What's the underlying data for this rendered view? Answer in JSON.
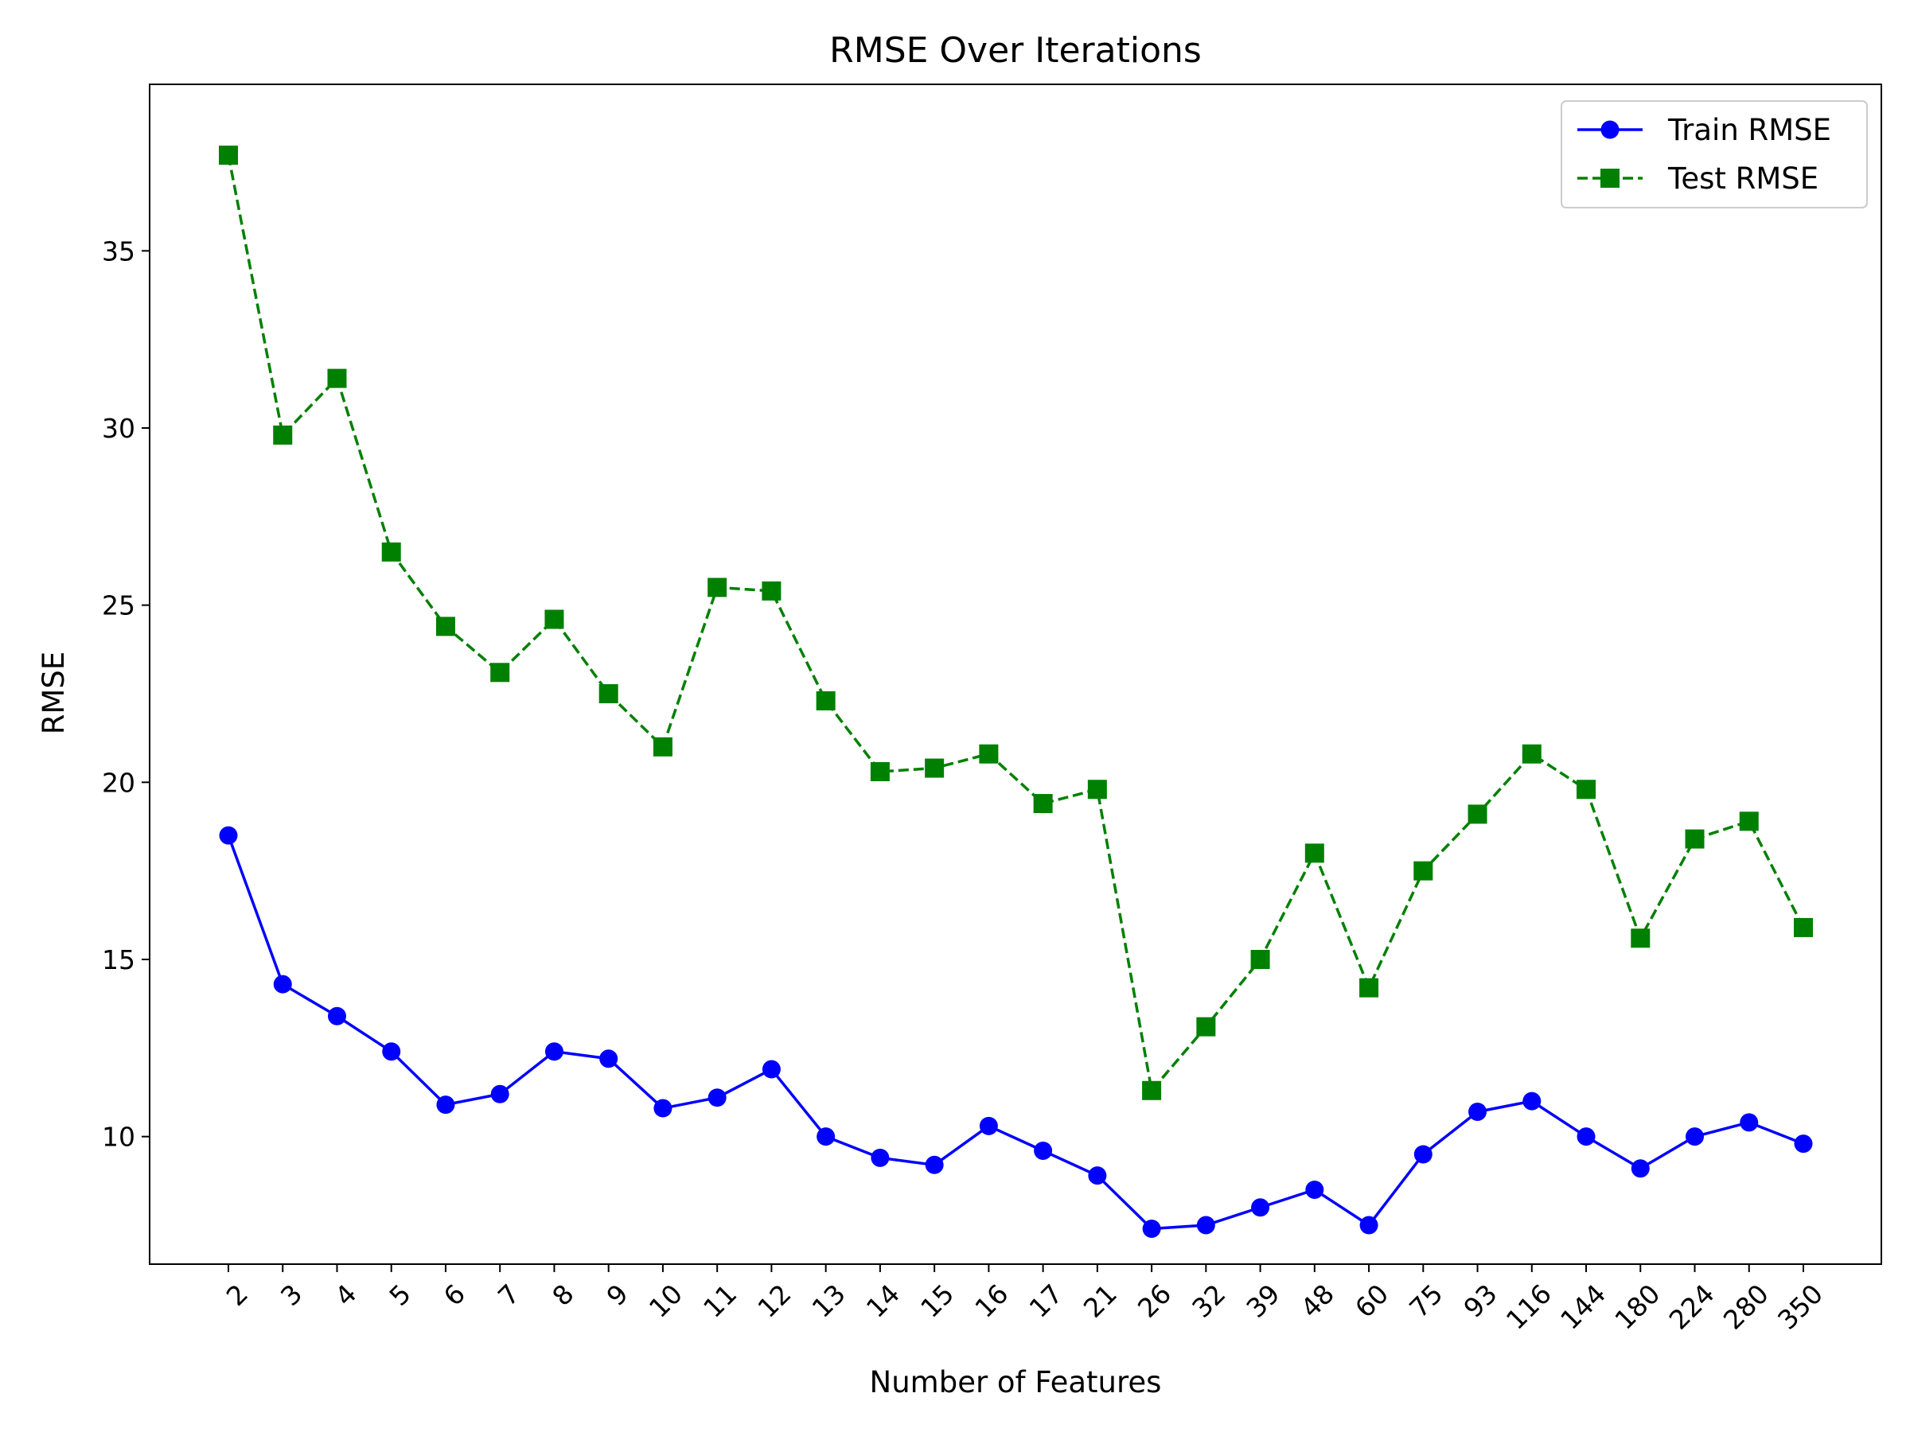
{
  "chart_data": {
    "type": "line",
    "title": "RMSE Over Iterations",
    "xlabel": "Number of Features",
    "ylabel": "RMSE",
    "x": [
      "2",
      "3",
      "4",
      "5",
      "6",
      "7",
      "8",
      "9",
      "10",
      "11",
      "12",
      "13",
      "14",
      "15",
      "16",
      "17",
      "21",
      "26",
      "32",
      "39",
      "48",
      "60",
      "75",
      "93",
      "116",
      "144",
      "180",
      "224",
      "280",
      "350"
    ],
    "ylim": [
      6.4,
      39.7
    ],
    "yticks": [
      10,
      15,
      20,
      25,
      30,
      35
    ],
    "grid": false,
    "legend": "top-right",
    "series": [
      {
        "name": "Train RMSE",
        "color": "#0000ff",
        "marker": "circle",
        "linestyle": "solid",
        "values": [
          18.5,
          14.3,
          13.4,
          12.4,
          10.9,
          11.2,
          12.4,
          12.2,
          10.8,
          11.1,
          11.9,
          10.0,
          9.4,
          9.2,
          10.3,
          9.6,
          8.9,
          7.4,
          7.5,
          8.0,
          8.5,
          7.5,
          9.5,
          10.7,
          11.0,
          10.0,
          9.1,
          10.0,
          10.4,
          9.8
        ]
      },
      {
        "name": "Test RMSE",
        "color": "#008000",
        "marker": "square",
        "linestyle": "dashed",
        "values": [
          37.7,
          29.8,
          31.4,
          26.5,
          24.4,
          23.1,
          24.6,
          22.5,
          21.0,
          25.5,
          25.4,
          22.3,
          20.3,
          20.4,
          20.8,
          19.4,
          19.8,
          11.3,
          13.1,
          15.0,
          18.0,
          14.2,
          17.5,
          19.1,
          20.8,
          19.8,
          15.6,
          18.4,
          18.9,
          15.9
        ]
      }
    ]
  }
}
